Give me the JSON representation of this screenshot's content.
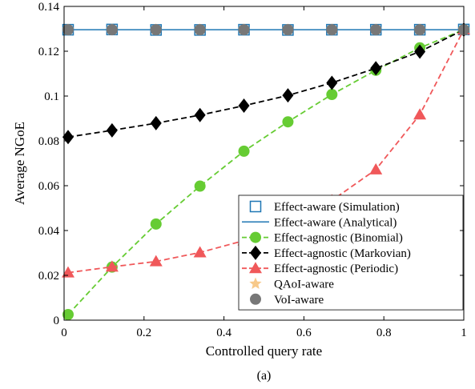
{
  "chart_data": {
    "type": "line",
    "title": "",
    "caption": "(a)",
    "xlabel": "Controlled query rate",
    "ylabel": "Average NGoE",
    "xlim": [
      0,
      1
    ],
    "ylim": [
      0,
      0.14
    ],
    "xticks": [
      0,
      0.2,
      0.4,
      0.6,
      0.8,
      1
    ],
    "xtick_labels": [
      "0",
      "0.2",
      "0.4",
      "0.6",
      "0.8",
      "1"
    ],
    "yticks": [
      0,
      0.02,
      0.04,
      0.06,
      0.08,
      0.1,
      0.12,
      0.14
    ],
    "ytick_labels": [
      "0",
      "0.02",
      "0.04",
      "0.06",
      "0.08",
      "0.1",
      "0.12",
      "0.14"
    ],
    "grid": false,
    "legend_position": "bottom-right",
    "series": [
      {
        "name": "Effect-aware (Simulation)",
        "color": "#1f77b4",
        "line": "none",
        "marker": "square-open",
        "x": [
          0.01,
          0.12,
          0.23,
          0.34,
          0.45,
          0.56,
          0.67,
          0.78,
          0.89,
          1.0
        ],
        "y": [
          0.1296,
          0.1297,
          0.1295,
          0.1295,
          0.1296,
          0.1295,
          0.1296,
          0.1296,
          0.1296,
          0.1297
        ]
      },
      {
        "name": "Effect-aware (Analytical)",
        "color": "#1f77b4",
        "line": "solid",
        "marker": "none",
        "x": [
          0.01,
          0.12,
          0.23,
          0.34,
          0.45,
          0.56,
          0.67,
          0.78,
          0.89,
          1.0
        ],
        "y": [
          0.1296,
          0.1296,
          0.1296,
          0.1296,
          0.1296,
          0.1296,
          0.1296,
          0.1296,
          0.1296,
          0.1296
        ]
      },
      {
        "name": "Effect-agnostic (Binomial)",
        "color": "#66cc33",
        "line": "dashed",
        "marker": "circle",
        "x": [
          0.01,
          0.12,
          0.23,
          0.34,
          0.45,
          0.56,
          0.67,
          0.78,
          0.89,
          1.0
        ],
        "y": [
          0.0025,
          0.0237,
          0.0429,
          0.0598,
          0.0754,
          0.0885,
          0.1007,
          0.1115,
          0.1215,
          0.1296
        ]
      },
      {
        "name": "Effect-agnostic (Markovian)",
        "color": "#000000",
        "line": "dashed",
        "marker": "diamond",
        "x": [
          0.01,
          0.12,
          0.23,
          0.34,
          0.45,
          0.56,
          0.67,
          0.78,
          0.89,
          1.0
        ],
        "y": [
          0.0817,
          0.0847,
          0.0879,
          0.0915,
          0.0957,
          0.1003,
          0.1059,
          0.1124,
          0.1198,
          0.1296
        ]
      },
      {
        "name": "Effect-agnostic (Periodic)",
        "color": "#f0585a",
        "line": "dashed",
        "marker": "triangle",
        "x": [
          0.01,
          0.12,
          0.23,
          0.34,
          0.45,
          0.56,
          0.67,
          0.78,
          0.89,
          1.0
        ],
        "y": [
          0.0212,
          0.0238,
          0.0262,
          0.0302,
          0.0355,
          0.0427,
          0.0534,
          0.0672,
          0.0917,
          0.1296
        ]
      },
      {
        "name": "QAoI-aware",
        "color": "#f7c98a",
        "line": "none",
        "marker": "star",
        "x": [
          0.01,
          0.12,
          0.23,
          0.34,
          0.45,
          0.56,
          0.67,
          0.78,
          0.89,
          1.0
        ],
        "y": [
          0.1296,
          0.1296,
          0.1296,
          0.1296,
          0.1296,
          0.1296,
          0.1296,
          0.1296,
          0.1296,
          0.1296
        ]
      },
      {
        "name": "VoI-aware",
        "color": "#777777",
        "line": "none",
        "marker": "circle",
        "x": [
          0.01,
          0.12,
          0.23,
          0.34,
          0.45,
          0.56,
          0.67,
          0.78,
          0.89,
          1.0
        ],
        "y": [
          0.1296,
          0.1296,
          0.1296,
          0.1296,
          0.1296,
          0.1296,
          0.1296,
          0.1296,
          0.1296,
          0.1296
        ]
      }
    ]
  }
}
